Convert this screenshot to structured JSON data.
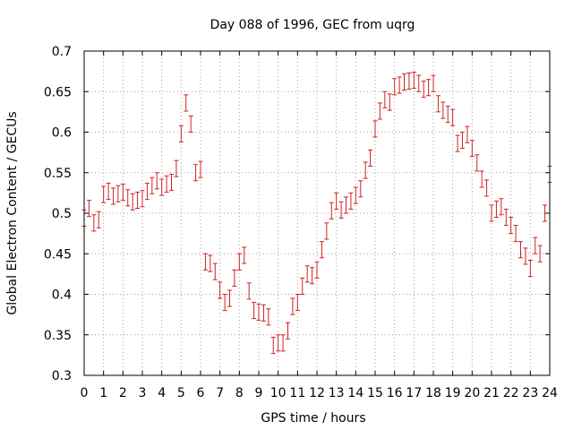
{
  "chart_data": {
    "type": "scatter",
    "title": "Day 088 of 1996, GEC from uqrg",
    "xlabel": "GPS time / hours",
    "ylabel": "Global Electron Content / GECUs",
    "xlim": [
      0,
      24
    ],
    "ylim": [
      0.3,
      0.7
    ],
    "xticks": [
      0,
      1,
      2,
      3,
      4,
      5,
      6,
      7,
      8,
      9,
      10,
      11,
      12,
      13,
      14,
      15,
      16,
      17,
      18,
      19,
      20,
      21,
      22,
      23,
      24
    ],
    "yticks": [
      0.3,
      0.35,
      0.4,
      0.45,
      0.5,
      0.55,
      0.6,
      0.65,
      0.7
    ],
    "xtick_labels": [
      "0",
      "1",
      "2",
      "3",
      "4",
      "5",
      "6",
      "7",
      "8",
      "9",
      "10",
      "11",
      "12",
      "13",
      "14",
      "15",
      "16",
      "17",
      "18",
      "19",
      "20",
      "21",
      "22",
      "23",
      "24"
    ],
    "ytick_labels": [
      "0.3",
      "0.35",
      "0.4",
      "0.45",
      "0.5",
      "0.55",
      "0.6",
      "0.65",
      "0.7"
    ],
    "grid": true,
    "error_bar_halfwidth": 0.01,
    "colors": {
      "series": "#cc2222",
      "grid": "#a0a0a0"
    },
    "series": [
      {
        "x": [
          0,
          0.25,
          0.5,
          0.75,
          1,
          1.25,
          1.5,
          1.75,
          2,
          2.25,
          2.5,
          2.75,
          3,
          3.25,
          3.5,
          3.75,
          4,
          4.25,
          4.5,
          4.75,
          5,
          5.25,
          5.5,
          5.75,
          6,
          6.25,
          6.5,
          6.75,
          7,
          7.25,
          7.5,
          7.75,
          8,
          8.25,
          8.5,
          8.75,
          9,
          9.25,
          9.5,
          9.75,
          10,
          10.25,
          10.5,
          10.75,
          11,
          11.25,
          11.5,
          11.75,
          12,
          12.25,
          12.5,
          12.75,
          13,
          13.25,
          13.5,
          13.75,
          14,
          14.25,
          14.5,
          14.75,
          15,
          15.25,
          15.5,
          15.75,
          16,
          16.25,
          16.5,
          16.75,
          17,
          17.25,
          17.5,
          17.75,
          18,
          18.25,
          18.5,
          18.75,
          19,
          19.25,
          19.5,
          19.75,
          20,
          20.25,
          20.5,
          20.75,
          21,
          21.25,
          21.5,
          21.75,
          22,
          22.25,
          22.5,
          22.75,
          23,
          23.25,
          23.5,
          23.75,
          24
        ],
        "values": [
          0.494,
          0.506,
          0.488,
          0.492,
          0.523,
          0.527,
          0.521,
          0.524,
          0.526,
          0.519,
          0.514,
          0.516,
          0.518,
          0.527,
          0.534,
          0.54,
          0.532,
          0.536,
          0.538,
          0.555,
          0.598,
          0.636,
          0.61,
          0.55,
          0.554,
          0.44,
          0.438,
          0.428,
          0.405,
          0.39,
          0.395,
          0.42,
          0.44,
          0.448,
          0.404,
          0.38,
          0.378,
          0.377,
          0.372,
          0.337,
          0.34,
          0.34,
          0.355,
          0.385,
          0.39,
          0.41,
          0.425,
          0.423,
          0.43,
          0.455,
          0.478,
          0.503,
          0.515,
          0.504,
          0.51,
          0.515,
          0.522,
          0.53,
          0.553,
          0.568,
          0.604,
          0.626,
          0.64,
          0.637,
          0.656,
          0.658,
          0.662,
          0.663,
          0.664,
          0.66,
          0.653,
          0.655,
          0.66,
          0.635,
          0.627,
          0.622,
          0.618,
          0.586,
          0.59,
          0.597,
          0.58,
          0.562,
          0.542,
          0.531,
          0.5,
          0.505,
          0.508,
          0.495,
          0.485,
          0.475,
          0.455,
          0.447,
          0.432,
          0.46,
          0.45,
          0.5,
          0.548
        ]
      }
    ]
  }
}
